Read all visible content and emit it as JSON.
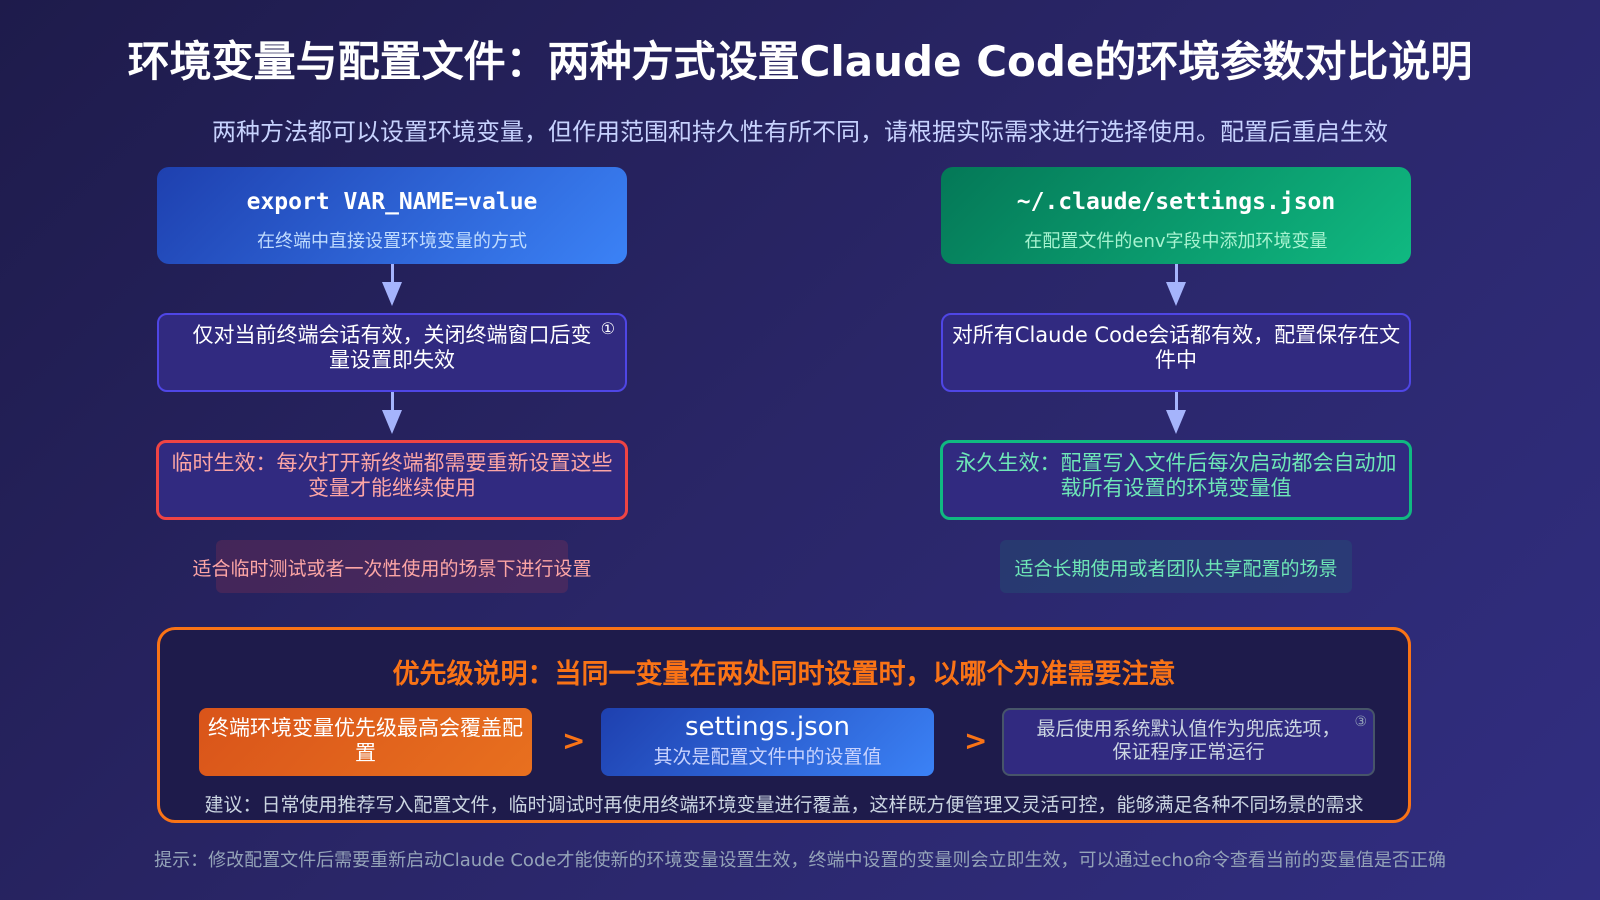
{
  "title": "环境变量与配置文件：两种方式设置Claude Code的环境参数对比说明",
  "subtitle": "两种方法都可以设置环境变量，但作用范围和持久性有所不同，请根据实际需求进行选择使用。配置后重启生效",
  "left": {
    "code": "export VAR_NAME=value",
    "desc": "在终端中直接设置环境变量的方式",
    "step": "仅对当前终端会话有效，关闭终端窗口后变量设置即失效",
    "step_badge": "①",
    "result": "临时生效：每次打开新终端都需要重新设置这些变量才能继续使用",
    "note": "适合临时测试或者一次性使用的场景下进行设置"
  },
  "right": {
    "code": "~/.claude/settings.json",
    "desc": "在配置文件的env字段中添加环境变量",
    "step": "对所有Claude Code会话都有效，配置保存在文件中",
    "result": "永久生效：配置写入文件后每次启动都会自动加载所有设置的环境变量值",
    "note": "适合长期使用或者团队共享配置的场景"
  },
  "bottom": {
    "title": "优先级说明：当同一变量在两处同时设置时，以哪个为准需要注意",
    "pill1": "终端环境变量优先级最高会覆盖配置",
    "arrow": ">",
    "pill2": "settings.json",
    "pill2_tail": "其次是配置文件中的设置值",
    "pill3": "最后使用系统默认值作为兜底选项，保证程序正常运行",
    "pill3_badge": "③",
    "footer": "建议：日常使用推荐写入配置文件，临时调试时再使用终端环境变量进行覆盖，这样既方便管理又灵活可控，能够满足各种不同场景的需求"
  },
  "footer": "提示：修改配置文件后需要重新启动Claude Code才能使新的环境变量设置生效，终端中设置的变量则会立即生效，可以通过echo命令查看当前的变量值是否正确",
  "colors": {
    "left_accent": "#ef4444",
    "right_accent": "#10b981",
    "bottom_accent": "#f97316"
  }
}
